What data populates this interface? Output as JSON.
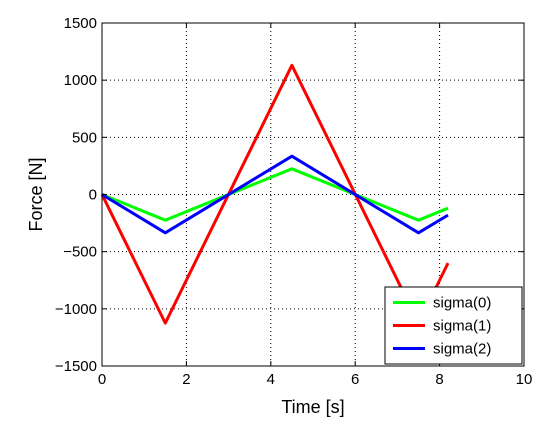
{
  "chart_data": {
    "type": "line",
    "title": "",
    "xlabel": "Time [s]",
    "ylabel": "Force [N]",
    "xlim": [
      0,
      10
    ],
    "ylim": [
      -1500,
      1500
    ],
    "xticks": [
      0,
      2,
      4,
      6,
      8,
      10
    ],
    "yticks": [
      -1500,
      -1000,
      -500,
      0,
      500,
      1000,
      1500
    ],
    "xtick_labels": [
      "0",
      "2",
      "4",
      "6",
      "8",
      "10"
    ],
    "ytick_labels": [
      "−1500",
      "−1000",
      "−500",
      "0",
      "500",
      "1000",
      "1500"
    ],
    "grid": true,
    "legend_position": "bottom-right",
    "series": [
      {
        "name": "sigma(0)",
        "color": "#00ff00",
        "x": [
          0,
          1.5,
          4.5,
          7.5,
          8.2
        ],
        "y": [
          0,
          -225,
          225,
          -225,
          -120
        ]
      },
      {
        "name": "sigma(1)",
        "color": "#ff0000",
        "x": [
          0,
          1.5,
          4.5,
          7.5,
          8.2
        ],
        "y": [
          0,
          -1125,
          1130,
          -1125,
          -600
        ]
      },
      {
        "name": "sigma(2)",
        "color": "#0000ff",
        "x": [
          0,
          1.5,
          4.5,
          7.5,
          8.2
        ],
        "y": [
          0,
          -335,
          335,
          -335,
          -180
        ]
      }
    ]
  }
}
